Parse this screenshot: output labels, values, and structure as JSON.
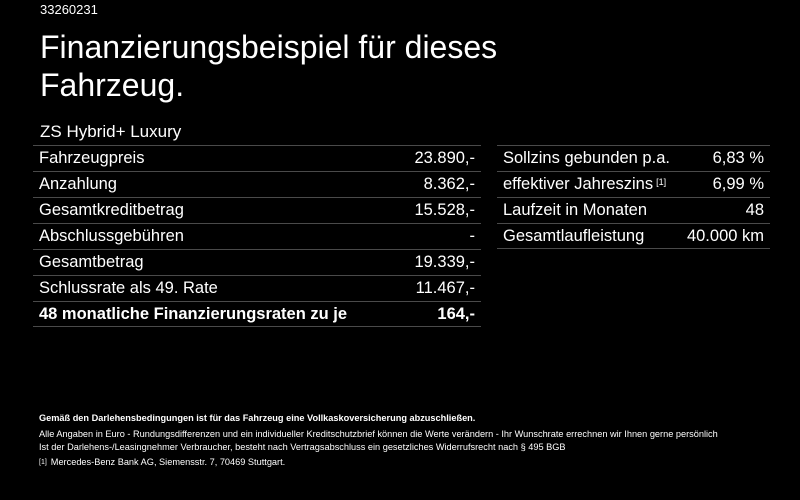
{
  "offer_code": "33260231",
  "title": "Finanzierungsbeispiel für dieses Fahrzeug.",
  "model": "ZS Hybrid+ Luxury",
  "left_table": [
    {
      "label": "Fahrzeugpreis",
      "value": "23.890,-"
    },
    {
      "label": "Anzahlung",
      "value": "8.362,-"
    },
    {
      "label": "Gesamtkreditbetrag",
      "value": "15.528,-"
    },
    {
      "label": "Abschlussgebühren",
      "value": "-"
    },
    {
      "label": "Gesamtbetrag",
      "value": "19.339,-"
    },
    {
      "label": "Schlussrate als 49. Rate",
      "value": "11.467,-"
    },
    {
      "label": "48 monatliche Finanzierungsraten zu je",
      "value": "164,-"
    }
  ],
  "right_table": [
    {
      "label": "Sollzins gebunden p.a.",
      "value": "6,83 %"
    },
    {
      "label": "effektiver Jahreszins",
      "sup": "[1]",
      "value": "6,99 %"
    },
    {
      "label": "Laufzeit in Monaten",
      "value": "48"
    },
    {
      "label": "Gesamtlaufleistung",
      "value": "40.000 km"
    }
  ],
  "footer": {
    "line1": "Gemäß den Darlehensbedingungen ist für das Fahrzeug eine Vollkaskoversicherung abzuschließen.",
    "line2": "Alle Angaben in Euro - Rundungsdifferenzen und ein individueller Kreditschutzbrief können die Werte verändern - Ihr Wunschrate errechnen wir Ihnen gerne persönlich",
    "line3": "Ist der Darlehens-/Leasingnehmer Verbraucher, besteht nach Vertragsabschluss ein gesetzliches Widerrufsrecht nach § 495 BGB",
    "footnote_marker": "[1]",
    "footnote": "Mercedes-Benz Bank AG, Siemensstr. 7, 70469 Stuttgart."
  }
}
